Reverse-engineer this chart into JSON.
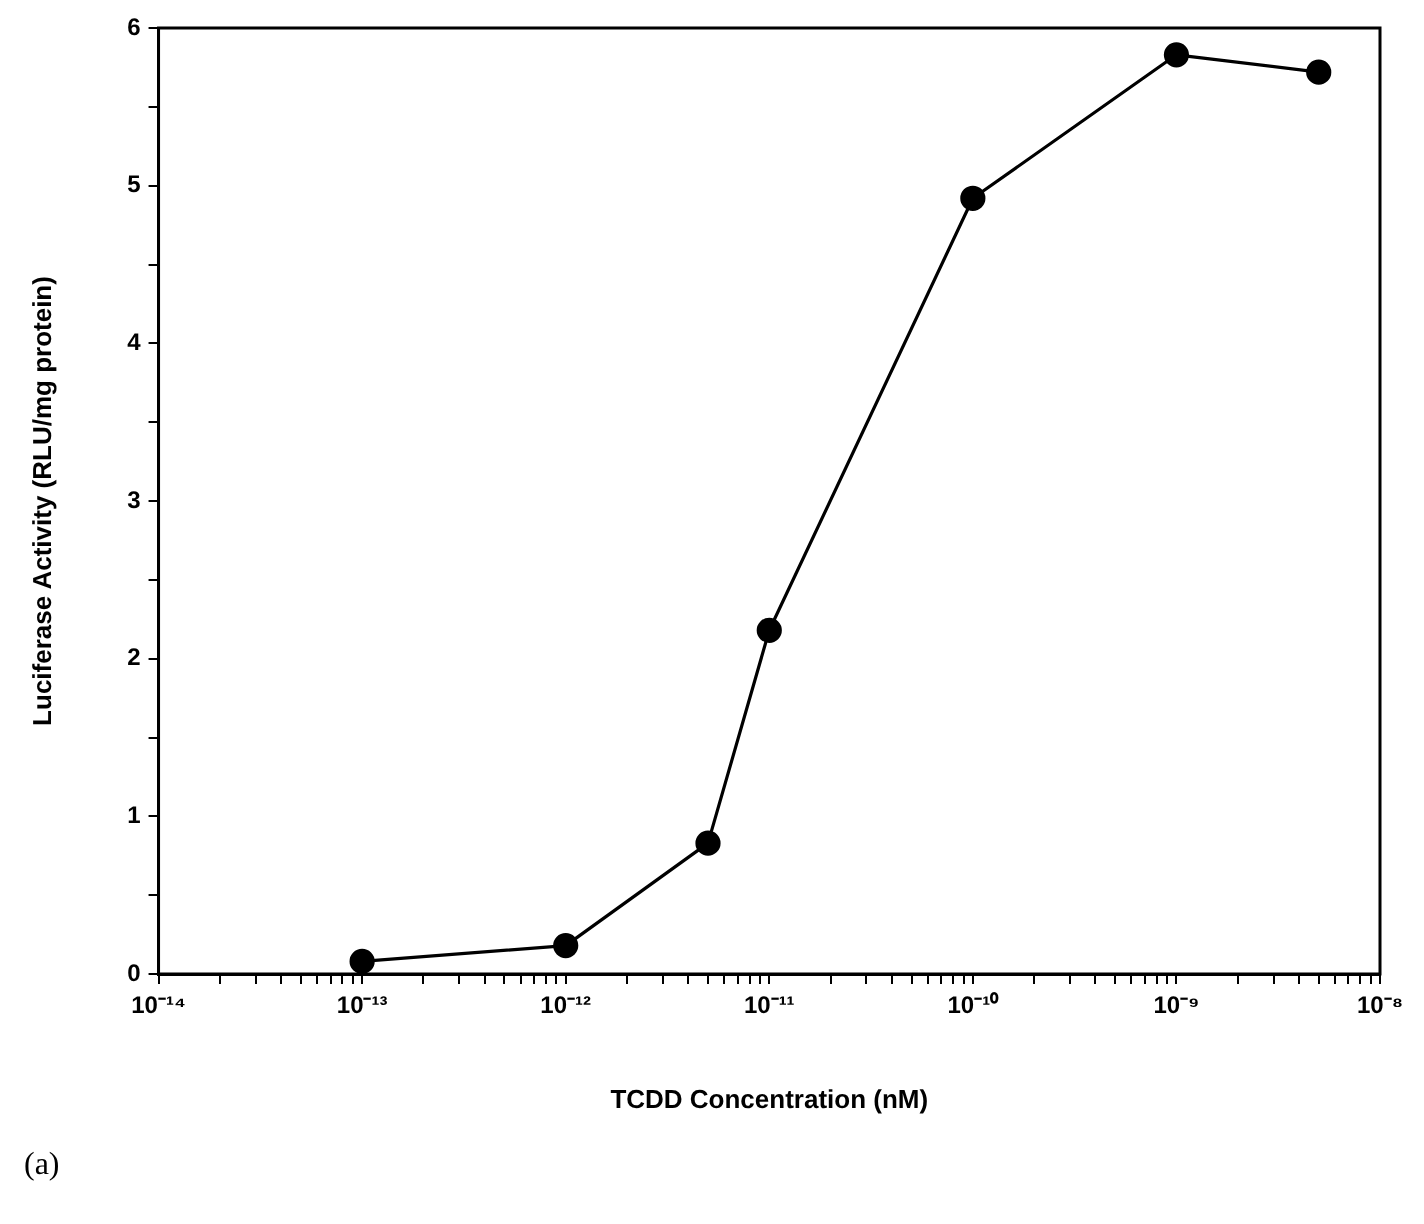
{
  "chart_data": {
    "type": "line",
    "xlabel": "TCDD Concentration (nM)",
    "ylabel": "Luciferase Activity (RLU/mg protein)",
    "annotations": [
      "(a)"
    ],
    "log": "x",
    "marker": "circle",
    "line_style": "solid",
    "grid": false,
    "legend": false,
    "x": [
      1e-13,
      1e-12,
      5e-12,
      1e-11,
      1e-10,
      1e-09,
      5e-09
    ],
    "series": [
      {
        "color": "#000000",
        "values": [
          0.08,
          0.18,
          0.83,
          2.18,
          4.92,
          5.83,
          5.72
        ]
      }
    ],
    "xlim": [
      1e-14,
      1e-08
    ],
    "xticks": [
      {
        "value": 1e-14,
        "label": "10⁻¹⁴"
      },
      {
        "value": 2e-14,
        "label": null
      },
      {
        "value": 3e-14,
        "label": null
      },
      {
        "value": 4e-14,
        "label": null
      },
      {
        "value": 5e-14,
        "label": null
      },
      {
        "value": 6e-14,
        "label": null
      },
      {
        "value": 7e-14,
        "label": null
      },
      {
        "value": 8e-14,
        "label": null
      },
      {
        "value": 9e-14,
        "label": null
      },
      {
        "value": 1e-13,
        "label": "10⁻¹³"
      },
      {
        "value": 2e-13,
        "label": null
      },
      {
        "value": 3e-13,
        "label": null
      },
      {
        "value": 4e-13,
        "label": null
      },
      {
        "value": 5e-13,
        "label": null
      },
      {
        "value": 6e-13,
        "label": null
      },
      {
        "value": 7e-13,
        "label": null
      },
      {
        "value": 8e-13,
        "label": null
      },
      {
        "value": 9e-13,
        "label": null
      },
      {
        "value": 1e-12,
        "label": "10⁻¹²"
      },
      {
        "value": 2e-12,
        "label": null
      },
      {
        "value": 3e-12,
        "label": null
      },
      {
        "value": 4e-12,
        "label": null
      },
      {
        "value": 5e-12,
        "label": null
      },
      {
        "value": 6e-12,
        "label": null
      },
      {
        "value": 7e-12,
        "label": null
      },
      {
        "value": 8e-12,
        "label": null
      },
      {
        "value": 9e-12,
        "label": null
      },
      {
        "value": 1e-11,
        "label": "10⁻¹¹"
      },
      {
        "value": 2e-11,
        "label": null
      },
      {
        "value": 3e-11,
        "label": null
      },
      {
        "value": 4e-11,
        "label": null
      },
      {
        "value": 5e-11,
        "label": null
      },
      {
        "value": 6e-11,
        "label": null
      },
      {
        "value": 7e-11,
        "label": null
      },
      {
        "value": 8e-11,
        "label": null
      },
      {
        "value": 9e-11,
        "label": null
      },
      {
        "value": 1e-10,
        "label": "10⁻¹⁰"
      },
      {
        "value": 2e-10,
        "label": null
      },
      {
        "value": 3e-10,
        "label": null
      },
      {
        "value": 4e-10,
        "label": null
      },
      {
        "value": 5e-10,
        "label": null
      },
      {
        "value": 6e-10,
        "label": null
      },
      {
        "value": 7e-10,
        "label": null
      },
      {
        "value": 8e-10,
        "label": null
      },
      {
        "value": 9e-10,
        "label": null
      },
      {
        "value": 1e-09,
        "label": "10⁻⁹"
      },
      {
        "value": 2e-09,
        "label": null
      },
      {
        "value": 3e-09,
        "label": null
      },
      {
        "value": 4e-09,
        "label": null
      },
      {
        "value": 5e-09,
        "label": null
      },
      {
        "value": 6e-09,
        "label": null
      },
      {
        "value": 7e-09,
        "label": null
      },
      {
        "value": 8e-09,
        "label": null
      },
      {
        "value": 9e-09,
        "label": null
      },
      {
        "value": 1e-08,
        "label": "10⁻⁸"
      }
    ],
    "ylim": [
      0,
      6
    ],
    "yticks": [
      0,
      {
        "value": 0.5,
        "label": null
      },
      1,
      {
        "value": 1.5,
        "label": null
      },
      2,
      {
        "value": 2.5,
        "label": null
      },
      3,
      {
        "value": 3.5,
        "label": null
      },
      4,
      {
        "value": 4.5,
        "label": null
      },
      5,
      {
        "value": 5.5,
        "label": null
      },
      6
    ]
  }
}
